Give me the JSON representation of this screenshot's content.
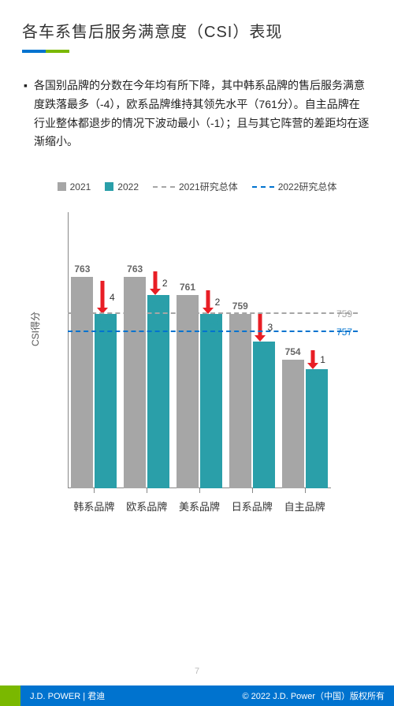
{
  "title": "各车系售后服务满意度（CSI）表现",
  "bullet": "各国别品牌的分数在今年均有所下降，其中韩系品牌的售后服务满意度跌落最多（-4），欧系品牌维持其领先水平（761分）。自主品牌在行业整体都退步的情况下波动最小（-1）；且与其它阵营的差距均在逐渐缩小。",
  "legend": {
    "series1": "2021",
    "series2": "2022",
    "ref1": "2021研究总体",
    "ref2": "2022研究总体"
  },
  "colors": {
    "series1": "#a6a6a6",
    "series2": "#2a9fa9",
    "ref1": "#a6a6a6",
    "ref2": "#0073cf",
    "arrow": "#e81e25",
    "label2022": "#2a9fa9",
    "label2021": "#666666"
  },
  "chart": {
    "type": "bar",
    "ylabel": "CSI得分",
    "ymin": 740,
    "ymax": 770,
    "categories": [
      "韩系品牌",
      "欧系品牌",
      "美系品牌",
      "日系品牌",
      "自主品牌"
    ],
    "series2021": [
      763,
      763,
      761,
      759,
      754
    ],
    "series2022": [
      759,
      761,
      759,
      756,
      753
    ],
    "delta": [
      4,
      2,
      2,
      3,
      1
    ],
    "ref2021": 759,
    "ref2022": 757
  },
  "pagenum": "7",
  "footer": {
    "brand": "J.D. POWER | 君迪",
    "copyright": "© 2022 J.D. Power（中国）版权所有"
  }
}
